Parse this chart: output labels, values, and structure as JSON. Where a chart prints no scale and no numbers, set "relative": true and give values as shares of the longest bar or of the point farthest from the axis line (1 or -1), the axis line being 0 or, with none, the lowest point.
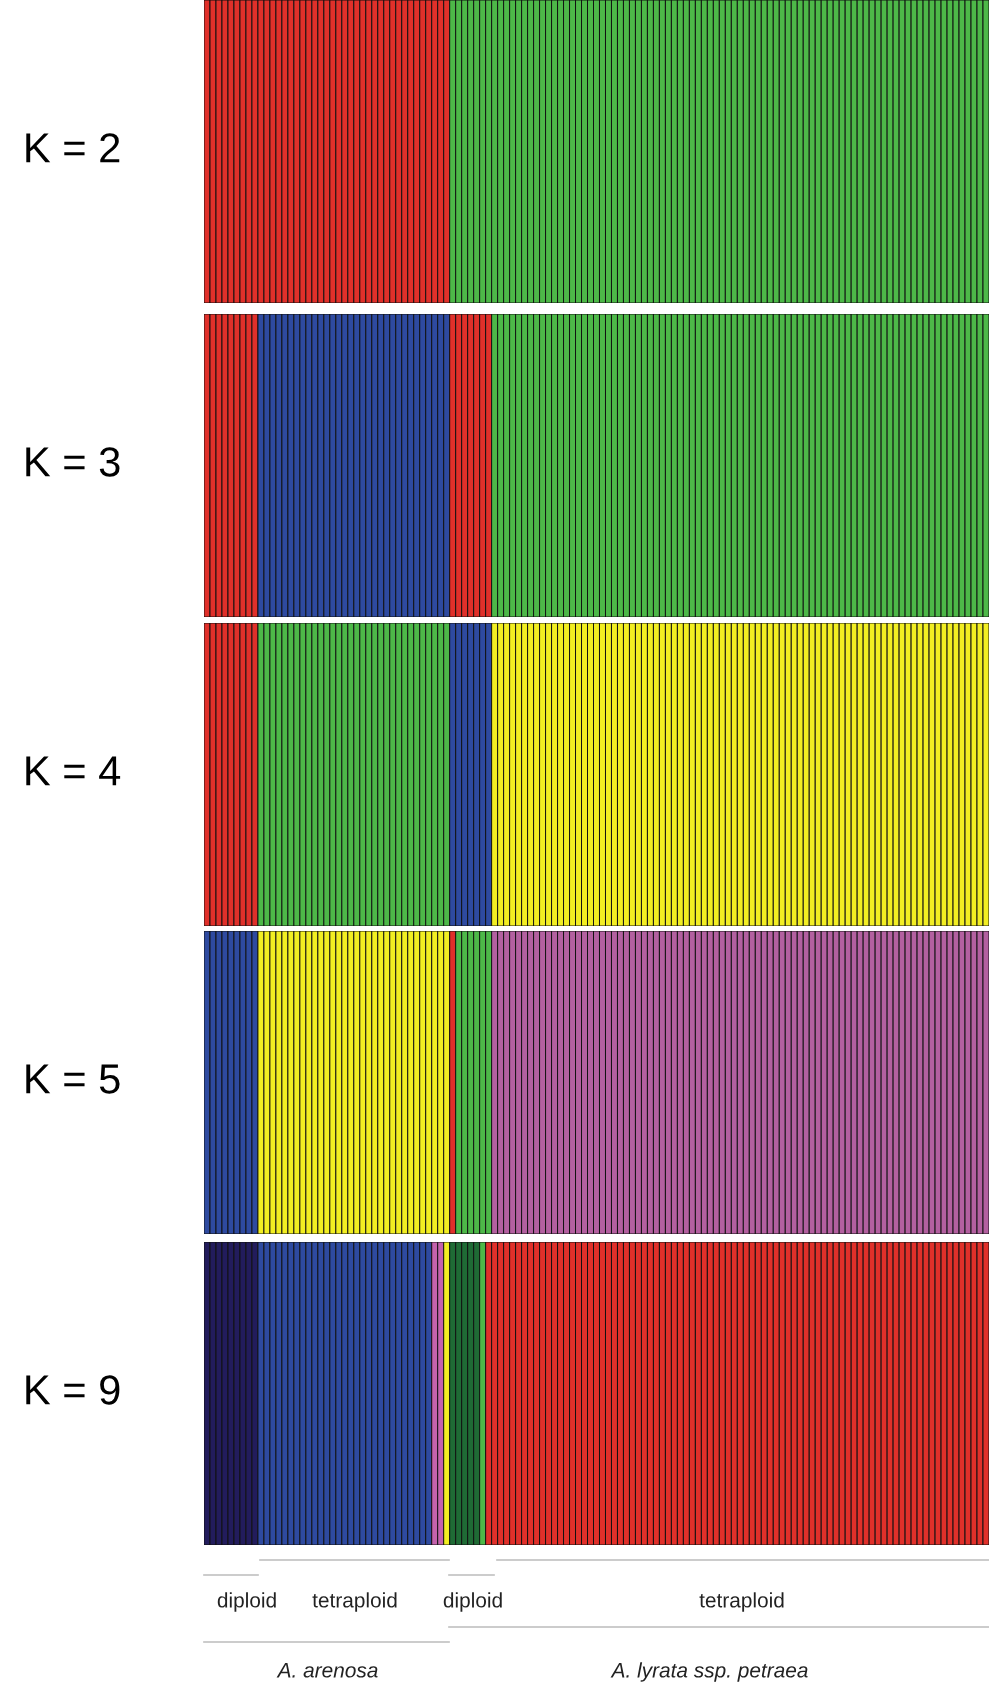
{
  "chart_data": [
    {
      "type": "bar",
      "relative": true,
      "ylabel": "K = 2",
      "categories": [
        null,
        null,
        null,
        null,
        null,
        null,
        null,
        null,
        null,
        null,
        null,
        null,
        null,
        null,
        null,
        null,
        null,
        null,
        null,
        null,
        null,
        null,
        null,
        null,
        null,
        null,
        null,
        null,
        null,
        null,
        null,
        null,
        null,
        null,
        null,
        null,
        null,
        null,
        null,
        null,
        null,
        null,
        null,
        null,
        null,
        null,
        null,
        null,
        null,
        null,
        null,
        null,
        null,
        null,
        null,
        null,
        null,
        null,
        null,
        null,
        null,
        null,
        null,
        null,
        null,
        null,
        null,
        null,
        null,
        null,
        null,
        null,
        null,
        null,
        null,
        null,
        null,
        null,
        null,
        null,
        null,
        null,
        null,
        null,
        null,
        null,
        null,
        null,
        null,
        null,
        null,
        null,
        null,
        null,
        null,
        null,
        null,
        null,
        null,
        null,
        null,
        null,
        null,
        null,
        null,
        null,
        null,
        null,
        null,
        null,
        null,
        null,
        null,
        null,
        null,
        null,
        null,
        null,
        null,
        null,
        null,
        null,
        null,
        null,
        null,
        null,
        null,
        null,
        null,
        null,
        null
      ],
      "values": [
        1,
        1,
        1,
        1,
        1,
        1,
        1,
        1,
        1,
        1,
        1,
        1,
        1,
        1,
        1,
        1,
        1,
        1,
        1,
        1,
        1,
        1,
        1,
        1,
        1,
        1,
        1,
        1,
        1,
        1,
        1,
        1,
        1,
        1,
        1,
        1,
        1,
        1,
        1,
        1,
        1,
        1,
        1,
        1,
        1,
        1,
        1,
        1,
        1,
        1,
        1,
        1,
        1,
        1,
        1,
        1,
        1,
        1,
        1,
        1,
        1,
        1,
        1,
        1,
        1,
        1,
        1,
        1,
        1,
        1,
        1,
        1,
        1,
        1,
        1,
        1,
        1,
        1,
        1,
        1,
        1,
        1,
        1,
        1,
        1,
        1,
        1,
        1,
        1,
        1,
        1,
        1,
        1,
        1,
        1,
        1,
        1,
        1,
        1,
        1,
        1,
        1,
        1,
        1,
        1,
        1,
        1,
        1,
        1,
        1,
        1,
        1,
        1,
        1,
        1,
        1,
        1,
        1,
        1,
        1,
        1,
        1,
        1,
        1,
        1,
        1,
        1,
        1,
        1,
        1,
        1
      ],
      "colors": [
        "#e0302a",
        "#e0302a",
        "#e0302a",
        "#e0302a",
        "#e0302a",
        "#e0302a",
        "#e0302a",
        "#e0302a",
        "#e0302a",
        "#e0302a",
        "#e0302a",
        "#e0302a",
        "#e0302a",
        "#e0302a",
        "#e0302a",
        "#e0302a",
        "#e0302a",
        "#e0302a",
        "#e0302a",
        "#e0302a",
        "#e0302a",
        "#e0302a",
        "#e0302a",
        "#e0302a",
        "#e0302a",
        "#e0302a",
        "#e0302a",
        "#e0302a",
        "#e0302a",
        "#e0302a",
        "#e0302a",
        "#e0302a",
        "#e0302a",
        "#e0302a",
        "#e0302a",
        "#e0302a",
        "#e0302a",
        "#e0302a",
        "#e0302a",
        "#e0302a",
        "#e0302a",
        "#4db848",
        "#4db848",
        "#4db848",
        "#4db848",
        "#4db848",
        "#4db848",
        "#4db848",
        "#4db848",
        "#4db848",
        "#4db848",
        "#4db848",
        "#4db848",
        "#4db848",
        "#4db848",
        "#4db848",
        "#4db848",
        "#4db848",
        "#4db848",
        "#4db848",
        "#4db848",
        "#4db848",
        "#4db848",
        "#4db848",
        "#4db848",
        "#4db848",
        "#4db848",
        "#4db848",
        "#4db848",
        "#4db848",
        "#4db848",
        "#4db848",
        "#4db848",
        "#4db848",
        "#4db848",
        "#4db848",
        "#4db848",
        "#4db848",
        "#4db848",
        "#4db848",
        "#4db848",
        "#4db848",
        "#4db848",
        "#4db848",
        "#4db848",
        "#4db848",
        "#4db848",
        "#4db848",
        "#4db848",
        "#4db848",
        "#4db848",
        "#4db848",
        "#4db848",
        "#4db848",
        "#4db848",
        "#4db848",
        "#4db848",
        "#4db848",
        "#4db848",
        "#4db848",
        "#4db848",
        "#4db848",
        "#4db848",
        "#4db848",
        "#4db848",
        "#4db848",
        "#4db848",
        "#4db848",
        "#4db848",
        "#4db848",
        "#4db848",
        "#4db848",
        "#4db848",
        "#4db848",
        "#4db848",
        "#4db848",
        "#4db848",
        "#4db848",
        "#4db848",
        "#4db848",
        "#4db848",
        "#4db848",
        "#4db848",
        "#4db848",
        "#4db848",
        "#4db848",
        "#4db848",
        "#4db848",
        "#4db848",
        "#4db848",
        "#4db848"
      ]
    },
    {
      "type": "bar",
      "relative": true,
      "ylabel": "K = 3",
      "categories": [
        null,
        null,
        null,
        null,
        null,
        null,
        null,
        null,
        null,
        null,
        null,
        null,
        null,
        null,
        null,
        null,
        null,
        null,
        null,
        null,
        null,
        null,
        null,
        null,
        null,
        null,
        null,
        null,
        null,
        null,
        null,
        null,
        null,
        null,
        null,
        null,
        null,
        null,
        null,
        null,
        null,
        null,
        null,
        null,
        null,
        null,
        null,
        null,
        null,
        null,
        null,
        null,
        null,
        null,
        null,
        null,
        null,
        null,
        null,
        null,
        null,
        null,
        null,
        null,
        null,
        null,
        null,
        null,
        null,
        null,
        null,
        null,
        null,
        null,
        null,
        null,
        null,
        null,
        null,
        null,
        null,
        null,
        null,
        null,
        null,
        null,
        null,
        null,
        null,
        null,
        null,
        null,
        null,
        null,
        null,
        null,
        null,
        null,
        null,
        null,
        null,
        null,
        null,
        null,
        null,
        null,
        null,
        null,
        null,
        null,
        null,
        null,
        null,
        null,
        null,
        null,
        null,
        null,
        null,
        null,
        null,
        null,
        null,
        null,
        null,
        null,
        null,
        null,
        null,
        null,
        null
      ],
      "values": [
        1,
        1,
        1,
        1,
        1,
        1,
        1,
        1,
        1,
        1,
        1,
        1,
        1,
        1,
        1,
        1,
        1,
        1,
        1,
        1,
        1,
        1,
        1,
        1,
        1,
        1,
        1,
        1,
        1,
        1,
        1,
        1,
        1,
        1,
        1,
        1,
        1,
        1,
        1,
        1,
        1,
        1,
        1,
        1,
        1,
        1,
        1,
        1,
        1,
        1,
        1,
        1,
        1,
        1,
        1,
        1,
        1,
        1,
        1,
        1,
        1,
        1,
        1,
        1,
        1,
        1,
        1,
        1,
        1,
        1,
        1,
        1,
        1,
        1,
        1,
        1,
        1,
        1,
        1,
        1,
        1,
        1,
        1,
        1,
        1,
        1,
        1,
        1,
        1,
        1,
        1,
        1,
        1,
        1,
        1,
        1,
        1,
        1,
        1,
        1,
        1,
        1,
        1,
        1,
        1,
        1,
        1,
        1,
        1,
        1,
        1,
        1,
        1,
        1,
        1,
        1,
        1,
        1,
        1,
        1,
        1,
        1,
        1,
        1,
        1,
        1,
        1,
        1,
        1,
        1,
        1
      ],
      "colors": [
        "#e0302a",
        "#e0302a",
        "#e0302a",
        "#e0302a",
        "#e0302a",
        "#e0302a",
        "#e0302a",
        "#e0302a",
        "#e0302a",
        "#2e4aa0",
        "#2e4aa0",
        "#2e4aa0",
        "#2e4aa0",
        "#2e4aa0",
        "#2e4aa0",
        "#2e4aa0",
        "#2e4aa0",
        "#2e4aa0",
        "#2e4aa0",
        "#2e4aa0",
        "#2e4aa0",
        "#2e4aa0",
        "#2e4aa0",
        "#2e4aa0",
        "#2e4aa0",
        "#2e4aa0",
        "#2e4aa0",
        "#2e4aa0",
        "#2e4aa0",
        "#2e4aa0",
        "#2e4aa0",
        "#2e4aa0",
        "#2e4aa0",
        "#2e4aa0",
        "#2e4aa0",
        "#2e4aa0",
        "#2e4aa0",
        "#2e4aa0",
        "#2e4aa0",
        "#2e4aa0",
        "#2e4aa0",
        "#e0302a",
        "#e0302a",
        "#e0302a",
        "#e0302a",
        "#e0302a",
        "#e0302a",
        "#e0302a",
        "#4db848",
        "#4db848",
        "#4db848",
        "#4db848",
        "#4db848",
        "#4db848",
        "#4db848",
        "#4db848",
        "#4db848",
        "#4db848",
        "#4db848",
        "#4db848",
        "#4db848",
        "#4db848",
        "#4db848",
        "#4db848",
        "#4db848",
        "#4db848",
        "#4db848",
        "#4db848",
        "#4db848",
        "#4db848",
        "#4db848",
        "#4db848",
        "#4db848",
        "#4db848",
        "#4db848",
        "#4db848",
        "#4db848",
        "#4db848",
        "#4db848",
        "#4db848",
        "#4db848",
        "#4db848",
        "#4db848",
        "#4db848",
        "#4db848",
        "#4db848",
        "#4db848",
        "#4db848",
        "#4db848",
        "#4db848",
        "#4db848",
        "#4db848",
        "#4db848",
        "#4db848",
        "#4db848",
        "#4db848",
        "#4db848",
        "#4db848",
        "#4db848",
        "#4db848",
        "#4db848",
        "#4db848",
        "#4db848",
        "#4db848",
        "#4db848",
        "#4db848",
        "#4db848",
        "#4db848",
        "#4db848",
        "#4db848",
        "#4db848",
        "#4db848",
        "#4db848",
        "#4db848",
        "#4db848",
        "#4db848",
        "#4db848",
        "#4db848",
        "#4db848",
        "#4db848",
        "#4db848",
        "#4db848",
        "#4db848",
        "#4db848",
        "#4db848",
        "#4db848",
        "#4db848",
        "#4db848",
        "#4db848",
        "#4db848",
        "#4db848"
      ]
    },
    {
      "type": "bar",
      "relative": true,
      "ylabel": "K = 4",
      "categories": [
        null,
        null,
        null,
        null,
        null,
        null,
        null,
        null,
        null,
        null,
        null,
        null,
        null,
        null,
        null,
        null,
        null,
        null,
        null,
        null,
        null,
        null,
        null,
        null,
        null,
        null,
        null,
        null,
        null,
        null,
        null,
        null,
        null,
        null,
        null,
        null,
        null,
        null,
        null,
        null,
        null,
        null,
        null,
        null,
        null,
        null,
        null,
        null,
        null,
        null,
        null,
        null,
        null,
        null,
        null,
        null,
        null,
        null,
        null,
        null,
        null,
        null,
        null,
        null,
        null,
        null,
        null,
        null,
        null,
        null,
        null,
        null,
        null,
        null,
        null,
        null,
        null,
        null,
        null,
        null,
        null,
        null,
        null,
        null,
        null,
        null,
        null,
        null,
        null,
        null,
        null,
        null,
        null,
        null,
        null,
        null,
        null,
        null,
        null,
        null,
        null,
        null,
        null,
        null,
        null,
        null,
        null,
        null,
        null,
        null,
        null,
        null,
        null,
        null,
        null,
        null,
        null,
        null,
        null,
        null,
        null,
        null,
        null,
        null,
        null,
        null,
        null,
        null,
        null,
        null,
        null
      ],
      "values": [
        1,
        1,
        1,
        1,
        1,
        1,
        1,
        1,
        1,
        1,
        1,
        1,
        1,
        1,
        1,
        1,
        1,
        1,
        1,
        1,
        1,
        1,
        1,
        1,
        1,
        1,
        1,
        1,
        1,
        1,
        1,
        1,
        1,
        1,
        1,
        1,
        1,
        1,
        1,
        1,
        1,
        1,
        1,
        1,
        1,
        1,
        1,
        1,
        1,
        1,
        1,
        1,
        1,
        1,
        1,
        1,
        1,
        1,
        1,
        1,
        1,
        1,
        1,
        1,
        1,
        1,
        1,
        1,
        1,
        1,
        1,
        1,
        1,
        1,
        1,
        1,
        1,
        1,
        1,
        1,
        1,
        1,
        1,
        1,
        1,
        1,
        1,
        1,
        1,
        1,
        1,
        1,
        1,
        1,
        1,
        1,
        1,
        1,
        1,
        1,
        1,
        1,
        1,
        1,
        1,
        1,
        1,
        1,
        1,
        1,
        1,
        1,
        1,
        1,
        1,
        1,
        1,
        1,
        1,
        1,
        1,
        1,
        1,
        1,
        1,
        1,
        1,
        1,
        1,
        1,
        1
      ],
      "colors": [
        "#e0302a",
        "#e0302a",
        "#e0302a",
        "#e0302a",
        "#e0302a",
        "#e0302a",
        "#e0302a",
        "#e0302a",
        "#e0302a",
        "#4db848",
        "#4db848",
        "#4db848",
        "#4db848",
        "#4db848",
        "#4db848",
        "#4db848",
        "#4db848",
        "#4db848",
        "#4db848",
        "#4db848",
        "#4db848",
        "#4db848",
        "#4db848",
        "#4db848",
        "#4db848",
        "#4db848",
        "#4db848",
        "#4db848",
        "#4db848",
        "#4db848",
        "#4db848",
        "#4db848",
        "#4db848",
        "#4db848",
        "#4db848",
        "#4db848",
        "#4db848",
        "#4db848",
        "#4db848",
        "#4db848",
        "#4db848",
        "#2e4aa0",
        "#2e4aa0",
        "#2e4aa0",
        "#2e4aa0",
        "#2e4aa0",
        "#2e4aa0",
        "#2e4aa0",
        "#f2ee22",
        "#f2ee22",
        "#f2ee22",
        "#f2ee22",
        "#f2ee22",
        "#f2ee22",
        "#f2ee22",
        "#f2ee22",
        "#f2ee22",
        "#f2ee22",
        "#f2ee22",
        "#f2ee22",
        "#f2ee22",
        "#f2ee22",
        "#f2ee22",
        "#f2ee22",
        "#f2ee22",
        "#f2ee22",
        "#f2ee22",
        "#f2ee22",
        "#f2ee22",
        "#f2ee22",
        "#f2ee22",
        "#f2ee22",
        "#f2ee22",
        "#f2ee22",
        "#f2ee22",
        "#f2ee22",
        "#f2ee22",
        "#f2ee22",
        "#f2ee22",
        "#f2ee22",
        "#f2ee22",
        "#f2ee22",
        "#f2ee22",
        "#f2ee22",
        "#f2ee22",
        "#f2ee22",
        "#f2ee22",
        "#f2ee22",
        "#f2ee22",
        "#f2ee22",
        "#f2ee22",
        "#f2ee22",
        "#f2ee22",
        "#f2ee22",
        "#f2ee22",
        "#f2ee22",
        "#f2ee22",
        "#f2ee22",
        "#f2ee22",
        "#f2ee22",
        "#f2ee22",
        "#f2ee22",
        "#f2ee22",
        "#f2ee22",
        "#f2ee22",
        "#f2ee22",
        "#f2ee22",
        "#f2ee22",
        "#f2ee22",
        "#f2ee22",
        "#f2ee22",
        "#f2ee22",
        "#f2ee22",
        "#f2ee22",
        "#f2ee22",
        "#f2ee22",
        "#f2ee22",
        "#f2ee22",
        "#f2ee22",
        "#f2ee22",
        "#f2ee22",
        "#f2ee22",
        "#f2ee22",
        "#f2ee22",
        "#f2ee22",
        "#f2ee22",
        "#f2ee22",
        "#f2ee22",
        "#f2ee22",
        "#f2ee22",
        "#f2ee22"
      ]
    },
    {
      "type": "bar",
      "relative": true,
      "ylabel": "K = 5",
      "categories": [
        null,
        null,
        null,
        null,
        null,
        null,
        null,
        null,
        null,
        null,
        null,
        null,
        null,
        null,
        null,
        null,
        null,
        null,
        null,
        null,
        null,
        null,
        null,
        null,
        null,
        null,
        null,
        null,
        null,
        null,
        null,
        null,
        null,
        null,
        null,
        null,
        null,
        null,
        null,
        null,
        null,
        null,
        null,
        null,
        null,
        null,
        null,
        null,
        null,
        null,
        null,
        null,
        null,
        null,
        null,
        null,
        null,
        null,
        null,
        null,
        null,
        null,
        null,
        null,
        null,
        null,
        null,
        null,
        null,
        null,
        null,
        null,
        null,
        null,
        null,
        null,
        null,
        null,
        null,
        null,
        null,
        null,
        null,
        null,
        null,
        null,
        null,
        null,
        null,
        null,
        null,
        null,
        null,
        null,
        null,
        null,
        null,
        null,
        null,
        null,
        null,
        null,
        null,
        null,
        null,
        null,
        null,
        null,
        null,
        null,
        null,
        null,
        null,
        null,
        null,
        null,
        null,
        null,
        null,
        null,
        null,
        null,
        null,
        null,
        null,
        null,
        null,
        null,
        null,
        null,
        null
      ],
      "values": [
        1,
        1,
        1,
        1,
        1,
        1,
        1,
        1,
        1,
        1,
        1,
        1,
        1,
        1,
        1,
        1,
        1,
        1,
        1,
        1,
        1,
        1,
        1,
        1,
        1,
        1,
        1,
        1,
        1,
        1,
        1,
        1,
        1,
        1,
        1,
        1,
        1,
        1,
        1,
        1,
        1,
        1,
        1,
        1,
        1,
        1,
        1,
        1,
        1,
        1,
        1,
        1,
        1,
        1,
        1,
        1,
        1,
        1,
        1,
        1,
        1,
        1,
        1,
        1,
        1,
        1,
        1,
        1,
        1,
        1,
        1,
        1,
        1,
        1,
        1,
        1,
        1,
        1,
        1,
        1,
        1,
        1,
        1,
        1,
        1,
        1,
        1,
        1,
        1,
        1,
        1,
        1,
        1,
        1,
        1,
        1,
        1,
        1,
        1,
        1,
        1,
        1,
        1,
        1,
        1,
        1,
        1,
        1,
        1,
        1,
        1,
        1,
        1,
        1,
        1,
        1,
        1,
        1,
        1,
        1,
        1,
        1,
        1,
        1,
        1,
        1,
        1,
        1,
        1,
        1,
        1
      ],
      "colors": [
        "#2e4aa0",
        "#2e4aa0",
        "#2e4aa0",
        "#2e4aa0",
        "#2e4aa0",
        "#2e4aa0",
        "#2e4aa0",
        "#2e4aa0",
        "#2e4aa0",
        "#f2ee22",
        "#f2ee22",
        "#f2ee22",
        "#f2ee22",
        "#f2ee22",
        "#f2ee22",
        "#f2ee22",
        "#f2ee22",
        "#f2ee22",
        "#f2ee22",
        "#f2ee22",
        "#f2ee22",
        "#f2ee22",
        "#f2ee22",
        "#f2ee22",
        "#f2ee22",
        "#f2ee22",
        "#f2ee22",
        "#f2ee22",
        "#f2ee22",
        "#f2ee22",
        "#f2ee22",
        "#f2ee22",
        "#f2ee22",
        "#f2ee22",
        "#f2ee22",
        "#f2ee22",
        "#f2ee22",
        "#f2ee22",
        "#f2ee22",
        "#f2ee22",
        "#f2ee22",
        "#e0302a",
        "#4db848",
        "#4db848",
        "#4db848",
        "#4db848",
        "#4db848",
        "#4db848",
        "#b360a0",
        "#b360a0",
        "#b360a0",
        "#b360a0",
        "#b360a0",
        "#b360a0",
        "#b360a0",
        "#b360a0",
        "#b360a0",
        "#b360a0",
        "#b360a0",
        "#b360a0",
        "#b360a0",
        "#b360a0",
        "#b360a0",
        "#b360a0",
        "#b360a0",
        "#b360a0",
        "#b360a0",
        "#b360a0",
        "#b360a0",
        "#b360a0",
        "#b360a0",
        "#b360a0",
        "#b360a0",
        "#b360a0",
        "#b360a0",
        "#b360a0",
        "#b360a0",
        "#b360a0",
        "#b360a0",
        "#b360a0",
        "#b360a0",
        "#b360a0",
        "#b360a0",
        "#b360a0",
        "#b360a0",
        "#b360a0",
        "#b360a0",
        "#b360a0",
        "#b360a0",
        "#b360a0",
        "#b360a0",
        "#b360a0",
        "#b360a0",
        "#b360a0",
        "#b360a0",
        "#b360a0",
        "#b360a0",
        "#b360a0",
        "#b360a0",
        "#b360a0",
        "#b360a0",
        "#b360a0",
        "#b360a0",
        "#b360a0",
        "#b360a0",
        "#b360a0",
        "#b360a0",
        "#b360a0",
        "#b360a0",
        "#b360a0",
        "#b360a0",
        "#b360a0",
        "#b360a0",
        "#b360a0",
        "#b360a0",
        "#b360a0",
        "#b360a0",
        "#b360a0",
        "#b360a0",
        "#b360a0",
        "#b360a0",
        "#b360a0",
        "#b360a0",
        "#b360a0",
        "#b360a0",
        "#b360a0",
        "#b360a0",
        "#b360a0",
        "#b360a0",
        "#b360a0",
        "#b360a0"
      ]
    },
    {
      "type": "bar",
      "relative": true,
      "ylabel": "K = 9",
      "categories": [
        null,
        null,
        null,
        null,
        null,
        null,
        null,
        null,
        null,
        null,
        null,
        null,
        null,
        null,
        null,
        null,
        null,
        null,
        null,
        null,
        null,
        null,
        null,
        null,
        null,
        null,
        null,
        null,
        null,
        null,
        null,
        null,
        null,
        null,
        null,
        null,
        null,
        null,
        null,
        null,
        null,
        null,
        null,
        null,
        null,
        null,
        null,
        null,
        null,
        null,
        null,
        null,
        null,
        null,
        null,
        null,
        null,
        null,
        null,
        null,
        null,
        null,
        null,
        null,
        null,
        null,
        null,
        null,
        null,
        null,
        null,
        null,
        null,
        null,
        null,
        null,
        null,
        null,
        null,
        null,
        null,
        null,
        null,
        null,
        null,
        null,
        null,
        null,
        null,
        null,
        null,
        null,
        null,
        null,
        null,
        null,
        null,
        null,
        null,
        null,
        null,
        null,
        null,
        null,
        null,
        null,
        null,
        null,
        null,
        null,
        null,
        null,
        null,
        null,
        null,
        null,
        null,
        null,
        null,
        null,
        null,
        null,
        null,
        null,
        null,
        null,
        null,
        null,
        null,
        null,
        null
      ],
      "values": [
        1,
        1,
        1,
        1,
        1,
        1,
        1,
        1,
        1,
        1,
        1,
        1,
        1,
        1,
        1,
        1,
        1,
        1,
        1,
        1,
        1,
        1,
        1,
        1,
        1,
        1,
        1,
        1,
        1,
        1,
        1,
        1,
        1,
        1,
        1,
        1,
        1,
        1,
        1,
        1,
        1,
        1,
        1,
        1,
        1,
        1,
        1,
        1,
        1,
        1,
        1,
        1,
        1,
        1,
        1,
        1,
        1,
        1,
        1,
        1,
        1,
        1,
        1,
        1,
        1,
        1,
        1,
        1,
        1,
        1,
        1,
        1,
        1,
        1,
        1,
        1,
        1,
        1,
        1,
        1,
        1,
        1,
        1,
        1,
        1,
        1,
        1,
        1,
        1,
        1,
        1,
        1,
        1,
        1,
        1,
        1,
        1,
        1,
        1,
        1,
        1,
        1,
        1,
        1,
        1,
        1,
        1,
        1,
        1,
        1,
        1,
        1,
        1,
        1,
        1,
        1,
        1,
        1,
        1,
        1,
        1,
        1,
        1,
        1,
        1,
        1,
        1,
        1,
        1,
        1,
        1
      ],
      "colors": [
        "#221c5c",
        "#221c5c",
        "#221c5c",
        "#221c5c",
        "#221c5c",
        "#221c5c",
        "#221c5c",
        "#221c5c",
        "#221c5c",
        "#2e4aa0",
        "#2e4aa0",
        "#2e4aa0",
        "#2e4aa0",
        "#2e4aa0",
        "#2e4aa0",
        "#2e4aa0",
        "#2e4aa0",
        "#2e4aa0",
        "#2e4aa0",
        "#2e4aa0",
        "#2e4aa0",
        "#2e4aa0",
        "#2e4aa0",
        "#2e4aa0",
        "#2e4aa0",
        "#2e4aa0",
        "#2e4aa0",
        "#2e4aa0",
        "#2e4aa0",
        "#2e4aa0",
        "#2e4aa0",
        "#2e4aa0",
        "#2e4aa0",
        "#2e4aa0",
        "#2e4aa0",
        "#2e4aa0",
        "#2e4aa0",
        "#2e4aa0",
        "#c462ac",
        "#c462ac",
        "#f2ee22",
        "#1f6b35",
        "#1f6b35",
        "#1f6b35",
        "#1f6b35",
        "#1f6b35",
        "#4db848",
        "#e0302a",
        "#e0302a",
        "#e0302a",
        "#e0302a",
        "#e0302a",
        "#e0302a",
        "#e0302a",
        "#e0302a",
        "#e0302a",
        "#e0302a",
        "#e0302a",
        "#e0302a",
        "#e0302a",
        "#e0302a",
        "#e0302a",
        "#e0302a",
        "#e0302a",
        "#e0302a",
        "#e0302a",
        "#e0302a",
        "#e0302a",
        "#e0302a",
        "#e0302a",
        "#e0302a",
        "#e0302a",
        "#e0302a",
        "#e0302a",
        "#e0302a",
        "#e0302a",
        "#e0302a",
        "#e0302a",
        "#e0302a",
        "#e0302a",
        "#e0302a",
        "#e0302a",
        "#e0302a",
        "#e0302a",
        "#e0302a",
        "#e0302a",
        "#e0302a",
        "#e0302a",
        "#e0302a",
        "#e0302a",
        "#e0302a",
        "#e0302a",
        "#e0302a",
        "#e0302a",
        "#e0302a",
        "#e0302a",
        "#e0302a",
        "#e0302a",
        "#e0302a",
        "#e0302a",
        "#e0302a",
        "#e0302a",
        "#e0302a",
        "#e0302a",
        "#e0302a",
        "#e0302a",
        "#e0302a",
        "#e0302a",
        "#e0302a",
        "#e0302a",
        "#e0302a",
        "#e0302a",
        "#e0302a",
        "#e0302a",
        "#e0302a",
        "#e0302a",
        "#e0302a",
        "#e0302a",
        "#e0302a",
        "#e0302a",
        "#e0302a",
        "#e0302a",
        "#e0302a",
        "#e0302a",
        "#e0302a",
        "#e0302a",
        "#e0302a",
        "#e0302a",
        "#e0302a",
        "#e0302a",
        "#e0302a"
      ],
      "annotations": [
        "diploid",
        "tetraploid",
        "diploid",
        "tetraploid",
        "A. arenosa",
        "A. lyrata ssp. petraea"
      ]
    }
  ]
}
